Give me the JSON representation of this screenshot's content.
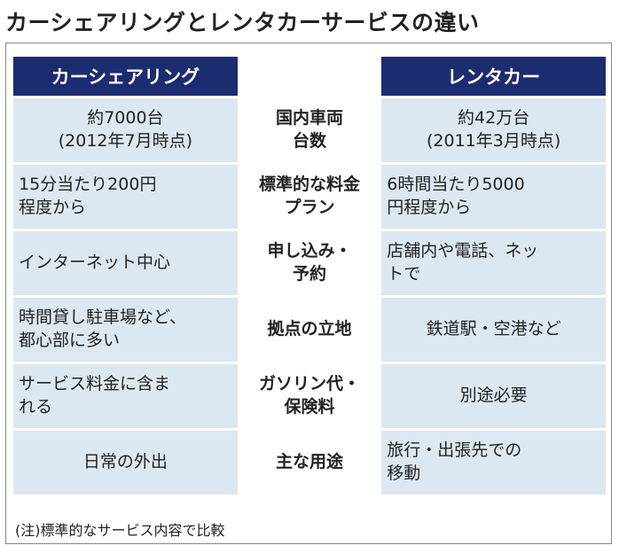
{
  "title": "カーシェアリングとレンタカーサービスの違い",
  "table": {
    "header": [
      "カーシェアリング",
      "レンタカー"
    ],
    "rows": [
      [
        "約7000台\n(2012年7月時点)",
        "国内車両\n台数",
        "約42万台\n(2011年3月時点)"
      ],
      [
        "15分当たり200円\n程度から",
        "標準的な料金\nプラン",
        "6時間当たり5000\n円程度から"
      ],
      [
        "インターネット中心",
        "申し込み・\n予約",
        "店舗内や電話、ネッ\nトで"
      ],
      [
        "時間貸し駐車場など、\n都心部に多い",
        "拠点の立地",
        "鉄道駅・空港など"
      ],
      [
        "サービス料金に含ま\nれる",
        "ガソリン代・\n保険料",
        "別途必要"
      ],
      [
        "日常の外出",
        "主な用途",
        "旅行・出張先での\n移動"
      ]
    ]
  },
  "note": "(注)標準的なサービス内容で比較"
}
